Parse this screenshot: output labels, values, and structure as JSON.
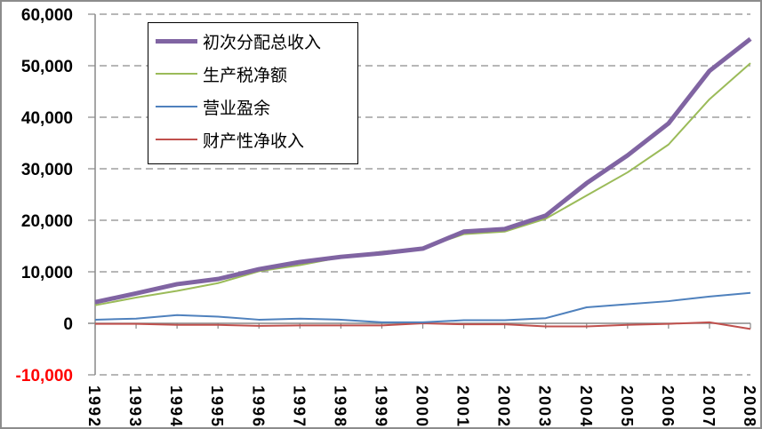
{
  "chart_data": {
    "type": "line",
    "title": "",
    "xlabel": "",
    "ylabel": "",
    "x": [
      "1992",
      "1993",
      "1994",
      "1995",
      "1996",
      "1997",
      "1998",
      "1999",
      "2000",
      "2001",
      "2002",
      "2003",
      "2004",
      "2005",
      "2006",
      "2007",
      "2008"
    ],
    "ylim": [
      -10000,
      60000
    ],
    "yticks": [
      60000,
      50000,
      40000,
      30000,
      20000,
      10000,
      0,
      -10000
    ],
    "ytick_labels": [
      "60,000",
      "50,000",
      "40,000",
      "30,000",
      "20,000",
      "10,000",
      "0",
      "-10,000"
    ],
    "negative_tick_color": "#ff0000",
    "grid": "horizontal dashed",
    "legend_position": "top-left",
    "series": [
      {
        "name": "初次分配总收入",
        "color": "#8064a2",
        "width": 5,
        "values": [
          4100,
          5800,
          7600,
          8600,
          10500,
          11900,
          12900,
          13600,
          14500,
          17800,
          18300,
          20900,
          27200,
          32600,
          38800,
          49000,
          55200
        ]
      },
      {
        "name": "生产税净额",
        "color": "#9bbb59",
        "width": 2,
        "values": [
          3500,
          5000,
          6300,
          7800,
          10100,
          11300,
          12800,
          13900,
          14600,
          17300,
          17800,
          20300,
          24800,
          29300,
          34700,
          43500,
          50500
        ]
      },
      {
        "name": "营业盈余",
        "color": "#4f81bd",
        "width": 2,
        "values": [
          700,
          900,
          1600,
          1300,
          700,
          900,
          700,
          200,
          200,
          600,
          600,
          1000,
          3100,
          3700,
          4300,
          5200,
          5900
        ]
      },
      {
        "name": "财产性净收入",
        "color": "#c0504d",
        "width": 2,
        "values": [
          -100,
          -100,
          -300,
          -300,
          -500,
          -400,
          -400,
          -400,
          0,
          -200,
          -200,
          -600,
          -600,
          -300,
          -100,
          200,
          -1100
        ]
      }
    ]
  }
}
